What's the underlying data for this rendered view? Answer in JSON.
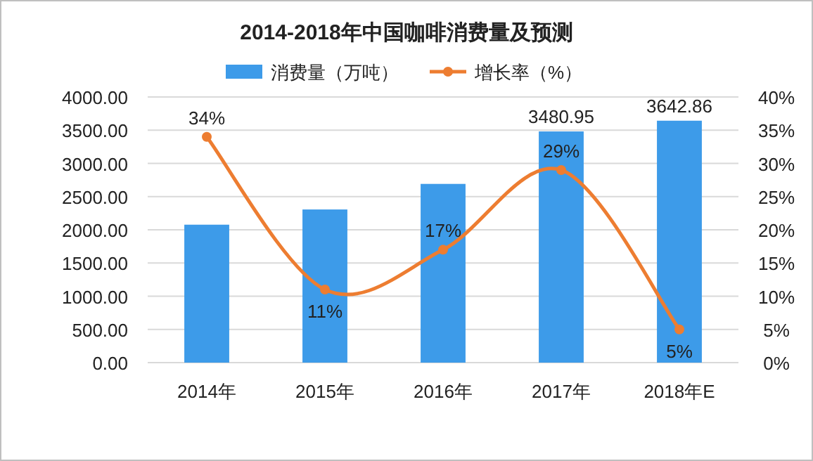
{
  "chart_data": {
    "type": "bar",
    "title": "2014-2018年中国咖啡消费量及预测",
    "categories": [
      "2014年",
      "2015年",
      "2016年",
      "2017年",
      "2018年E"
    ],
    "series": [
      {
        "name": "消费量（万吨）",
        "color": "#3d9be9",
        "values": [
          2077,
          2306,
          2691,
          3480.95,
          3642.86
        ],
        "value_labels": [
          null,
          null,
          null,
          "3480.95",
          "3642.86"
        ]
      },
      {
        "name": "增长率（%）",
        "type": "line",
        "axis": "y2",
        "color": "#ed7d31",
        "values": [
          34,
          11,
          17,
          29,
          5
        ],
        "value_labels": [
          "34%",
          "11%",
          "17%",
          "29%",
          "5%"
        ]
      }
    ],
    "ylim": [
      0,
      4000
    ],
    "yticks": [
      {
        "value": 0,
        "label": "0.00"
      },
      {
        "value": 500,
        "label": "500.00"
      },
      {
        "value": 1000,
        "label": "1000.00"
      },
      {
        "value": 1500,
        "label": "1500.00"
      },
      {
        "value": 2000,
        "label": "2000.00"
      },
      {
        "value": 2500,
        "label": "2500.00"
      },
      {
        "value": 3000,
        "label": "3000.00"
      },
      {
        "value": 3500,
        "label": "3500.00"
      },
      {
        "value": 4000,
        "label": "4000.00"
      }
    ],
    "y2lim": [
      0,
      40
    ],
    "y2ticks": [
      {
        "value": 0,
        "label": "0%"
      },
      {
        "value": 5,
        "label": "5%"
      },
      {
        "value": 10,
        "label": "10%"
      },
      {
        "value": 15,
        "label": "15%"
      },
      {
        "value": 20,
        "label": "20%"
      },
      {
        "value": 25,
        "label": "25%"
      },
      {
        "value": 30,
        "label": "30%"
      },
      {
        "value": 35,
        "label": "35%"
      },
      {
        "value": 40,
        "label": "40%"
      }
    ],
    "grid": "y",
    "legend": "top",
    "marker": "circle"
  }
}
